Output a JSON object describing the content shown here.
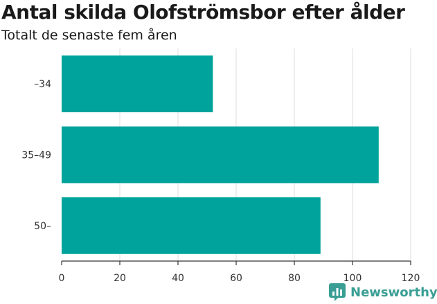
{
  "title": "Antal skilda Olofströmsbor efter ålder",
  "subtitle": "Totalt de senaste fem åren",
  "brand": "Newsworthy",
  "colors": {
    "bar": "#00a39b",
    "grid": "#dcdcdc",
    "axis": "#333333",
    "brand": "#3a9e94"
  },
  "chart_data": {
    "type": "bar",
    "orientation": "horizontal",
    "categories": [
      "–34",
      "35–49",
      "50–"
    ],
    "values": [
      52,
      109,
      89
    ],
    "xlim": [
      0,
      120
    ],
    "xticks": [
      0,
      20,
      40,
      60,
      80,
      100,
      120
    ],
    "grid": true,
    "legend": "none"
  }
}
